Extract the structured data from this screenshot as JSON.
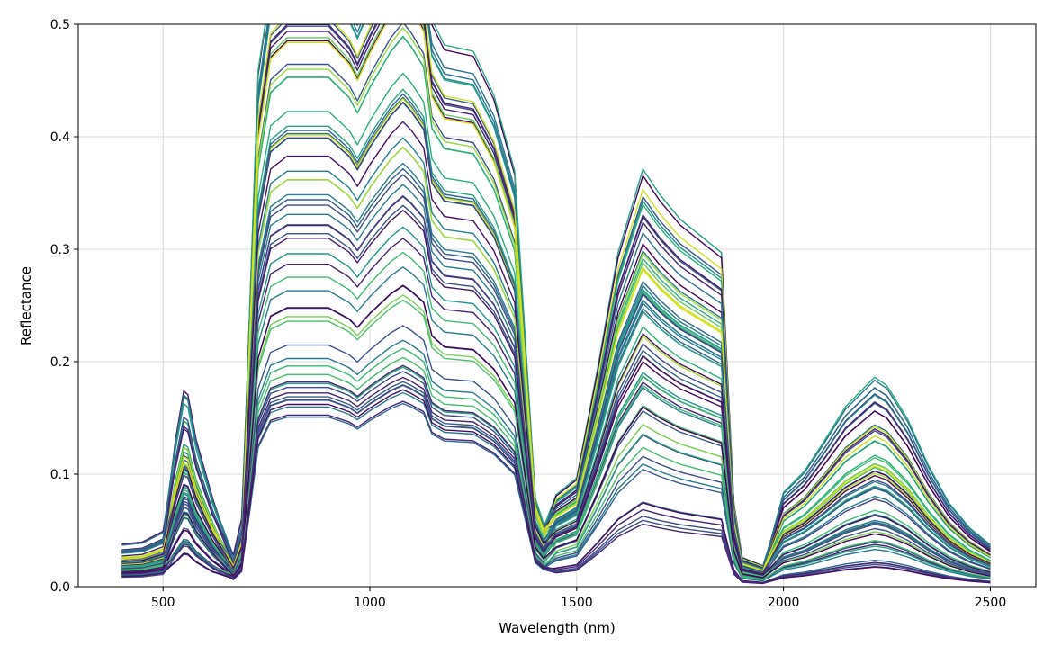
{
  "chart_data": {
    "type": "line",
    "title": "",
    "xlabel": "Wavelength (nm)",
    "ylabel": "Reflectance",
    "xlim": [
      295,
      2610
    ],
    "ylim": [
      0.0,
      0.5
    ],
    "x_ticks": [
      500,
      1000,
      1500,
      2000,
      2500
    ],
    "x_tick_labels": [
      "500",
      "1000",
      "1500",
      "2000",
      "2500"
    ],
    "y_ticks": [
      0.0,
      0.1,
      0.2,
      0.3,
      0.4,
      0.5
    ],
    "y_tick_labels": [
      "0.0",
      "0.1",
      "0.2",
      "0.3",
      "0.4",
      "0.5"
    ],
    "grid": true,
    "legend": "none",
    "colormap": "viridis",
    "x_range": [
      400,
      2500
    ],
    "series_count": 60,
    "wavelength_nodes": [
      400,
      450,
      500,
      530,
      550,
      560,
      580,
      620,
      670,
      690,
      710,
      730,
      760,
      800,
      900,
      950,
      970,
      1000,
      1050,
      1080,
      1100,
      1130,
      1150,
      1180,
      1250,
      1300,
      1350,
      1400,
      1420,
      1450,
      1500,
      1550,
      1600,
      1660,
      1700,
      1750,
      1800,
      1850,
      1880,
      1900,
      1950,
      2000,
      2050,
      2100,
      2150,
      2220,
      2250,
      2300,
      2350,
      2400,
      2450,
      2500
    ],
    "spectra": [
      {
        "green_peak": 0.154,
        "baseline": 0.034,
        "nir_plateau": 0.5,
        "swir1_peak": 0.315,
        "swir2_peak": 0.16
      },
      {
        "green_peak": 0.128,
        "baseline": 0.028,
        "nir_plateau": 0.47,
        "swir1_peak": 0.31,
        "swir2_peak": 0.15
      },
      {
        "green_peak": 0.112,
        "baseline": 0.024,
        "nir_plateau": 0.44,
        "swir1_peak": 0.29,
        "swir2_peak": 0.128
      },
      {
        "green_peak": 0.095,
        "baseline": 0.02,
        "nir_plateau": 0.4,
        "swir1_peak": 0.25,
        "swir2_peak": 0.095
      },
      {
        "green_peak": 0.085,
        "baseline": 0.018,
        "nir_plateau": 0.35,
        "swir1_peak": 0.23,
        "swir2_peak": 0.09
      },
      {
        "green_peak": 0.075,
        "baseline": 0.016,
        "nir_plateau": 0.3,
        "swir1_peak": 0.2,
        "swir2_peak": 0.06
      },
      {
        "green_peak": 0.06,
        "baseline": 0.014,
        "nir_plateau": 0.22,
        "swir1_peak": 0.16,
        "swir2_peak": 0.05
      },
      {
        "green_peak": 0.045,
        "baseline": 0.012,
        "nir_plateau": 0.17,
        "swir1_peak": 0.12,
        "swir2_peak": 0.035
      },
      {
        "green_peak": 0.035,
        "baseline": 0.01,
        "nir_plateau": 0.155,
        "swir1_peak": 0.065,
        "swir2_peak": 0.02
      }
    ]
  }
}
